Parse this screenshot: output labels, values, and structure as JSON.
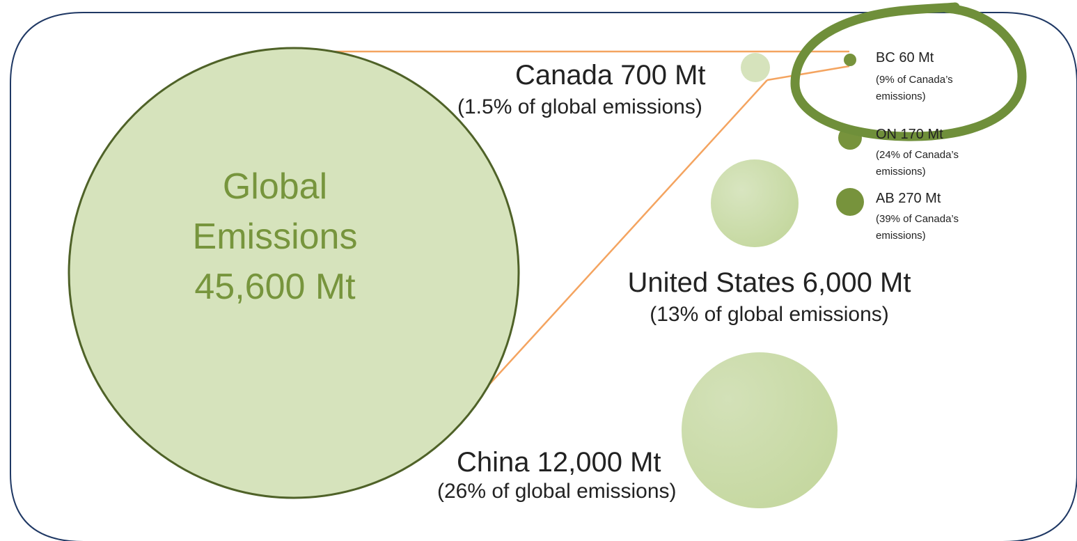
{
  "global": {
    "line1": "Global",
    "line2": "Emissions",
    "line3": "45,600 Mt"
  },
  "canada": {
    "title": "Canada 700 Mt",
    "sub": "(1.5% of global emissions)"
  },
  "united_states": {
    "title": "United States 6,000 Mt",
    "sub": "(13% of global emissions)"
  },
  "china": {
    "title": "China 12,000 Mt",
    "sub": "(26% of global emissions)"
  },
  "bc": {
    "title": "BC 60 Mt",
    "sub1": "(9% of Canada’s",
    "sub2": "emissions)"
  },
  "on": {
    "title": "ON 170 Mt",
    "sub1": "(24% of Canada’s",
    "sub2": "emissions)"
  },
  "ab": {
    "title": "AB 270 Mt",
    "sub1": "(39% of Canada’s",
    "sub2": "emissions)"
  },
  "colors": {
    "frame": "#1f3864",
    "light_green": "#d6e3bc",
    "dark_green": "#77933c",
    "highlight_green": "#6f8f3a",
    "connector_orange": "#f4a460",
    "global_outline": "#4f6228"
  }
}
